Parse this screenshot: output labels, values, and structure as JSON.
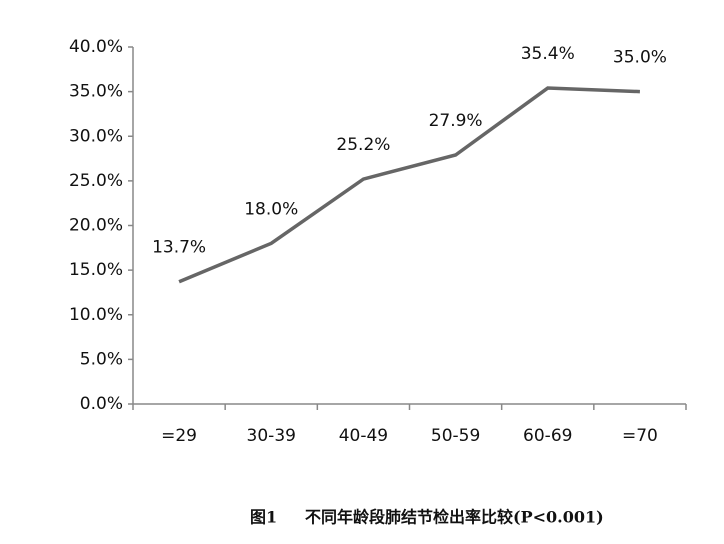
{
  "chart_data": {
    "type": "line",
    "categories": [
      "=29",
      "30-39",
      "40-49",
      "50-59",
      "60-69",
      "=70"
    ],
    "series": [
      {
        "color": "#666666",
        "values": [
          13.7,
          18.0,
          25.2,
          27.9,
          35.4,
          35.0
        ],
        "value_labels": [
          "13.7%",
          "18.0%",
          "25.2%",
          "27.9%",
          "35.4%",
          "35.0%"
        ]
      }
    ],
    "ylim": [
      0,
      40
    ],
    "yticks": [
      {
        "value": 0,
        "label": "0.0%"
      },
      {
        "value": 5,
        "label": "5.0%"
      },
      {
        "value": 10,
        "label": "10.0%"
      },
      {
        "value": 15,
        "label": "15.0%"
      },
      {
        "value": 20,
        "label": "20.0%"
      },
      {
        "value": 25,
        "label": "25.0%"
      },
      {
        "value": 30,
        "label": "30.0%"
      },
      {
        "value": 35,
        "label": "35.0%"
      },
      {
        "value": 40,
        "label": "40.0%"
      }
    ],
    "grid": false,
    "caption_label": "图1",
    "caption": "不同年龄段肺结节检出率比较(P<0.001)"
  }
}
